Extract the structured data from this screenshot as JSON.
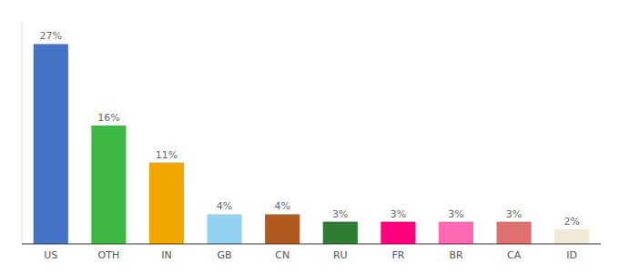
{
  "chart_data": {
    "type": "bar",
    "categories": [
      "US",
      "OTH",
      "IN",
      "GB",
      "CN",
      "RU",
      "FR",
      "BR",
      "CA",
      "ID"
    ],
    "values": [
      27,
      16,
      11,
      4,
      4,
      3,
      3,
      3,
      3,
      2
    ],
    "value_labels": [
      "27%",
      "16%",
      "11%",
      "4%",
      "4%",
      "3%",
      "3%",
      "3%",
      "3%",
      "2%"
    ],
    "colors": [
      "#4472c4",
      "#3cb843",
      "#f0a800",
      "#92d2f0",
      "#b05a20",
      "#2e7d32",
      "#ff007f",
      "#ff69b4",
      "#e07070",
      "#f0ead6"
    ],
    "ylim": [
      0,
      30
    ],
    "data_labels": true,
    "grid": false,
    "tick_labels": "x"
  }
}
